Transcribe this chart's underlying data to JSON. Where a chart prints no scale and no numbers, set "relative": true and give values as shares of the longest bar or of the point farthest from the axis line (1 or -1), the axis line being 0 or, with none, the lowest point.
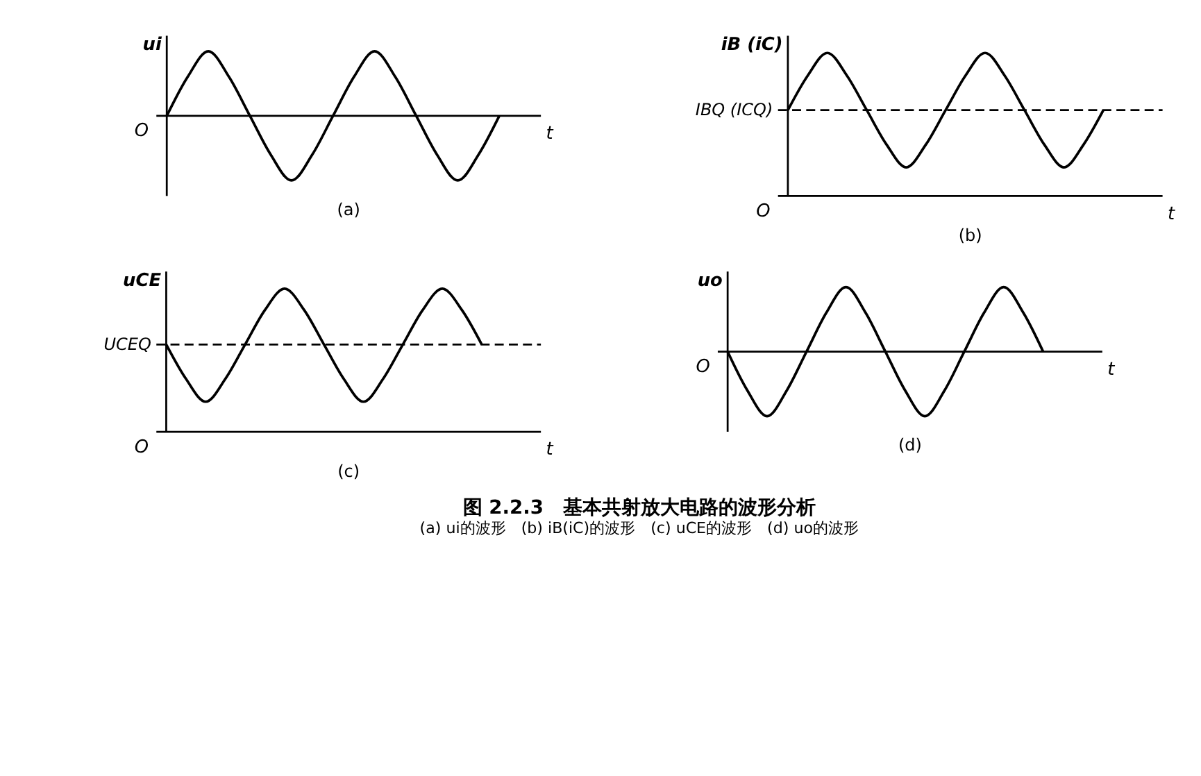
{
  "chart_data": [
    {
      "type": "line",
      "relative": true,
      "title": "(a)",
      "ylabel": "ui",
      "xlabel": "t",
      "marker": "none",
      "line_style": "solid",
      "annotations": [
        "O"
      ],
      "categories": [
        null,
        null,
        null,
        null,
        null,
        null,
        null,
        null,
        null,
        null,
        null,
        null,
        null,
        null,
        null,
        null,
        null,
        null,
        null
      ],
      "series": [
        {
          "color": "#000000",
          "values": [
            0,
            0.6,
            1,
            0.6,
            0,
            -0.6,
            -1,
            -0.6,
            0,
            0.6,
            1,
            0.6,
            0,
            -0.6,
            -1,
            -0.6,
            0,
            null,
            null
          ]
        }
      ]
    },
    {
      "type": "line",
      "relative": true,
      "title": "(b)",
      "ylabel": "iB (iC)",
      "xlabel": "t",
      "marker": "none",
      "line_style": "solid",
      "annotations": [
        "O"
      ],
      "categories": [
        null,
        null,
        null,
        null,
        null,
        null,
        null,
        null,
        null,
        null,
        null,
        null,
        null,
        null,
        null,
        null,
        null,
        null,
        null,
        null
      ],
      "ref_lines": [
        {
          "axis": "y",
          "value": 0.6,
          "label": "IBQ (ICQ)",
          "line_style": "dashed",
          "color": "#000000"
        }
      ],
      "series": [
        {
          "color": "#000000",
          "values": [
            0.6,
            0.84,
            1,
            0.84,
            0.6,
            0.36,
            0.2,
            0.36,
            0.6,
            0.84,
            1,
            0.84,
            0.6,
            0.36,
            0.2,
            0.36,
            0.6,
            null,
            null,
            null
          ]
        }
      ]
    },
    {
      "type": "line",
      "relative": true,
      "title": "(c)",
      "ylabel": "uCE",
      "xlabel": "t",
      "marker": "none",
      "line_style": "solid",
      "annotations": [
        "O"
      ],
      "categories": [
        null,
        null,
        null,
        null,
        null,
        null,
        null,
        null,
        null,
        null,
        null,
        null,
        null,
        null,
        null,
        null,
        null,
        null,
        null,
        null
      ],
      "ref_lines": [
        {
          "axis": "y",
          "value": 0.61,
          "label": "UCEQ",
          "line_style": "dashed",
          "color": "#000000"
        }
      ],
      "series": [
        {
          "color": "#000000",
          "values": [
            0.61,
            0.37,
            0.21,
            0.37,
            0.61,
            0.85,
            1,
            0.85,
            0.61,
            0.37,
            0.21,
            0.37,
            0.61,
            0.85,
            1,
            0.85,
            0.61,
            null,
            null,
            null
          ]
        }
      ]
    },
    {
      "type": "line",
      "relative": true,
      "title": "(d)",
      "ylabel": "uo",
      "xlabel": "t",
      "marker": "none",
      "line_style": "solid",
      "annotations": [
        "O",
        "图 2.2.3　基本共射放大电路的波形分析",
        "(a) ui的波形　(b) iB(iC)的波形　(c) uCE的波形　(d) uo的波形"
      ],
      "categories": [
        null,
        null,
        null,
        null,
        null,
        null,
        null,
        null,
        null,
        null,
        null,
        null,
        null,
        null,
        null,
        null,
        null,
        null,
        null,
        null
      ],
      "series": [
        {
          "color": "#000000",
          "values": [
            0,
            -0.6,
            -1,
            -0.6,
            0,
            0.6,
            1,
            0.6,
            0,
            -0.6,
            -1,
            -0.6,
            0,
            0.6,
            1,
            0.6,
            0,
            null,
            null,
            null
          ]
        }
      ]
    }
  ]
}
